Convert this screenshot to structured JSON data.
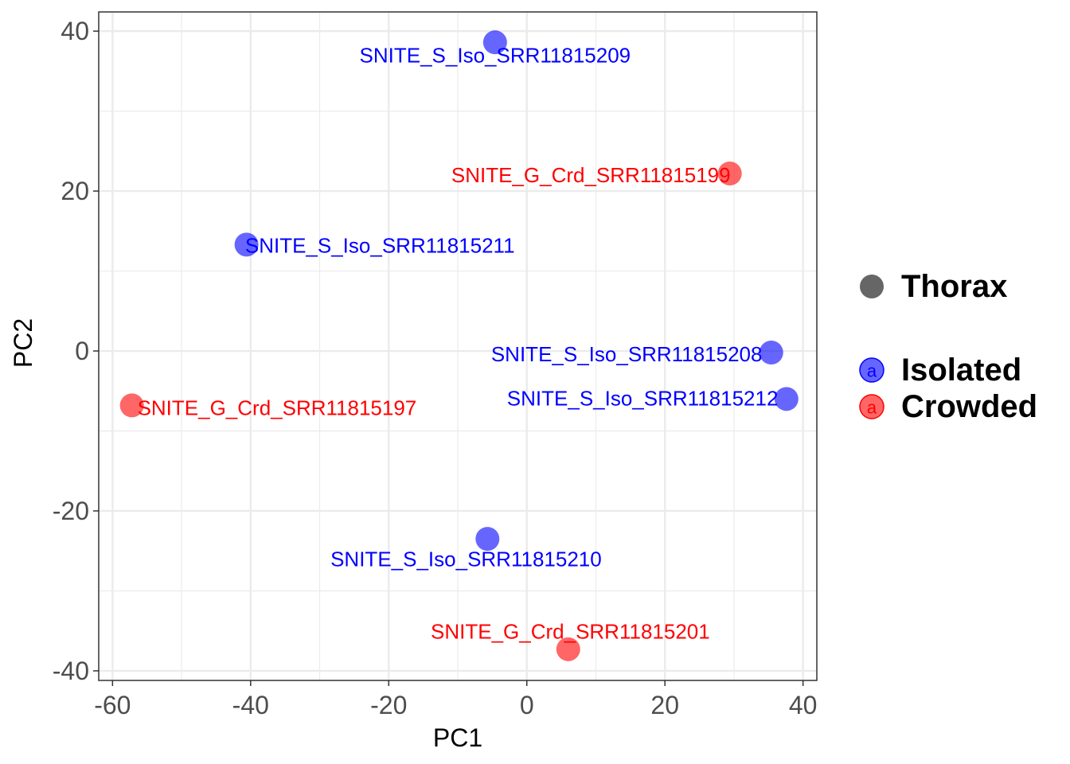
{
  "chart_data": {
    "type": "scatter",
    "title": "",
    "xlabel": "PC1",
    "ylabel": "PC2",
    "xlim": [
      -62,
      42
    ],
    "ylim": [
      -41.2,
      42.4
    ],
    "xticks": [
      -60,
      -40,
      -20,
      0,
      20,
      40
    ],
    "yticks": [
      -40,
      -20,
      0,
      20,
      40
    ],
    "xtick_labels": [
      "-60",
      "-40",
      "-20",
      "0",
      "20",
      "40"
    ],
    "ytick_labels": [
      "-40",
      "-20",
      "0",
      "20",
      "40"
    ],
    "grid": true,
    "legend_position": "right",
    "legend": {
      "shape_entries": [
        {
          "label": "Thorax",
          "color": "#666666"
        }
      ],
      "color_entries": [
        {
          "label": "Isolated",
          "color": "#0000ff"
        },
        {
          "label": "Crowded",
          "color": "#ff0000"
        }
      ],
      "key_glyph": "a"
    },
    "series": [
      {
        "name": "Isolated",
        "color": "#0000ff",
        "points": [
          {
            "x": -4.6,
            "y": 38.6,
            "label": "SNITE_S_Iso_SRR11815209",
            "anchor": "middle",
            "dy": -1.6
          },
          {
            "x": -40.6,
            "y": 13.3,
            "label": "SNITE_S_Iso_SRR11815211",
            "anchor": "start",
            "dx": -0.2,
            "dy": -0.1
          },
          {
            "x": 35.4,
            "y": -0.2,
            "label": "SNITE_S_Iso_SRR11815208",
            "anchor": "end",
            "dx": -1.3,
            "dy": -0.2
          },
          {
            "x": 37.6,
            "y": -6.0,
            "label": "SNITE_S_Iso_SRR11815212",
            "anchor": "end",
            "dx": -1.2,
            "dy": 0.1
          },
          {
            "x": -5.7,
            "y": -23.5,
            "label": "SNITE_S_Iso_SRR11815210",
            "anchor": "middle",
            "dx": -3.1,
            "dy": -2.5
          }
        ]
      },
      {
        "name": "Crowded",
        "color": "#ff0000",
        "points": [
          {
            "x": 29.4,
            "y": 22.2,
            "label": "SNITE_G_Crd_SRR11815199",
            "anchor": "end",
            "dx": 0.1,
            "dy": -0.2
          },
          {
            "x": -57.2,
            "y": -6.8,
            "label": "SNITE_G_Crd_SRR11815197",
            "anchor": "start",
            "dx": 0.8,
            "dy": -0.3
          },
          {
            "x": 6.0,
            "y": -37.3,
            "label": "SNITE_G_Crd_SRR11815201",
            "anchor": "middle",
            "dx": 0.3,
            "dy": 2.2
          }
        ]
      }
    ]
  }
}
